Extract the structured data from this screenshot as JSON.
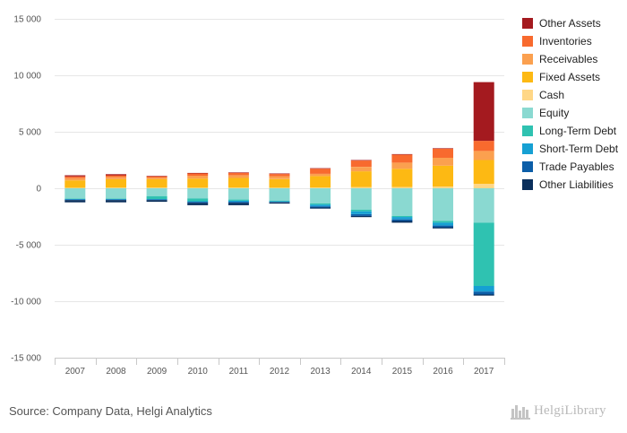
{
  "chart_data": {
    "type": "bar",
    "stacked": true,
    "categories": [
      "2007",
      "2008",
      "2009",
      "2010",
      "2011",
      "2012",
      "2013",
      "2014",
      "2015",
      "2016",
      "2017"
    ],
    "ylim": [
      -15000,
      15000
    ],
    "yticks": [
      15000,
      10000,
      5000,
      0,
      -5000,
      -10000,
      -15000
    ],
    "ytick_labels": [
      "15 000",
      "10 000",
      "5 000",
      "0",
      "-5 000",
      "-10 000",
      "-15 000"
    ],
    "grid": true,
    "legend_position": "right",
    "series": [
      {
        "name": "Cash",
        "color": "#ffd787",
        "values": [
          50,
          50,
          50,
          60,
          60,
          60,
          80,
          100,
          120,
          150,
          400
        ]
      },
      {
        "name": "Fixed Assets",
        "color": "#fdb913",
        "values": [
          650,
          750,
          750,
          800,
          850,
          750,
          1000,
          1400,
          1600,
          1850,
          2100
        ]
      },
      {
        "name": "Receivables",
        "color": "#fba04f",
        "values": [
          200,
          200,
          150,
          250,
          250,
          250,
          200,
          400,
          550,
          700,
          800
        ]
      },
      {
        "name": "Inventories",
        "color": "#f86a2e",
        "values": [
          150,
          150,
          100,
          200,
          200,
          200,
          450,
          550,
          700,
          800,
          900
        ]
      },
      {
        "name": "Other Assets",
        "color": "#a41a1f",
        "values": [
          100,
          100,
          50,
          50,
          50,
          50,
          50,
          50,
          50,
          50,
          5200
        ]
      },
      {
        "name": "Equity",
        "color": "#8ad9d1",
        "values": [
          -900,
          -900,
          -700,
          -900,
          -1000,
          -1100,
          -1350,
          -1900,
          -2450,
          -2900,
          -3050
        ]
      },
      {
        "name": "Long-Term Debt",
        "color": "#2fc2b1",
        "values": [
          -50,
          -50,
          -250,
          -250,
          -100,
          -50,
          -100,
          -150,
          -100,
          -150,
          -5600
        ]
      },
      {
        "name": "Short-Term Debt",
        "color": "#16a0d3",
        "values": [
          -50,
          -50,
          -50,
          -50,
          -100,
          -50,
          -150,
          -250,
          -200,
          -250,
          -500
        ]
      },
      {
        "name": "Trade Payables",
        "color": "#0c5ea8",
        "values": [
          -50,
          -50,
          -50,
          -100,
          -100,
          -50,
          -100,
          -150,
          -150,
          -150,
          -250
        ]
      },
      {
        "name": "Other Liabilities",
        "color": "#0a2f5c",
        "values": [
          -200,
          -200,
          -150,
          -200,
          -200,
          -100,
          -100,
          -100,
          -150,
          -100,
          -100
        ]
      }
    ],
    "legend_order": [
      "Other Assets",
      "Inventories",
      "Receivables",
      "Fixed Assets",
      "Cash",
      "Equity",
      "Long-Term Debt",
      "Short-Term Debt",
      "Trade Payables",
      "Other Liabilities"
    ]
  },
  "footer": {
    "source": "Source: Company Data, Helgi Analytics",
    "logo_text": "HelgiLibrary"
  }
}
